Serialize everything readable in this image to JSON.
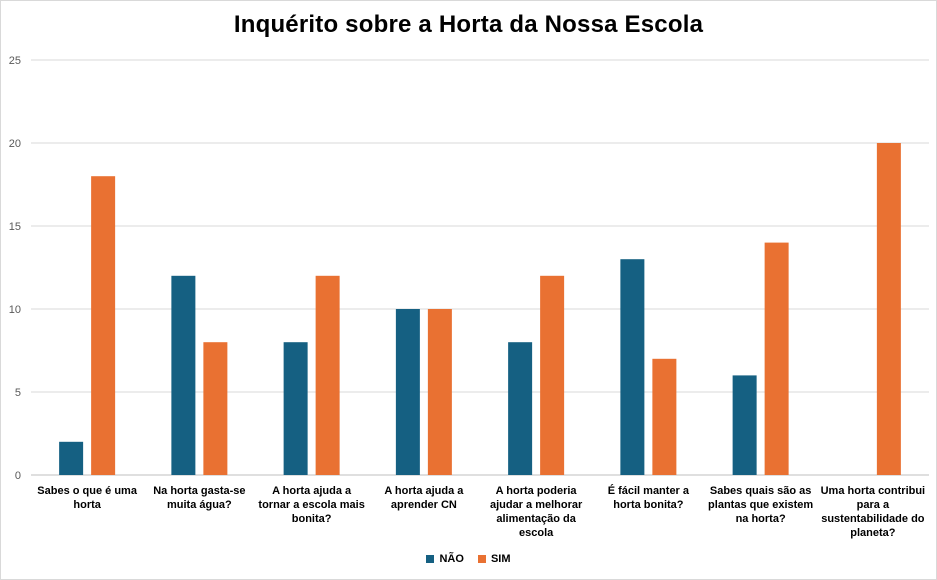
{
  "chart_data": {
    "type": "bar",
    "title": "Inquérito sobre a Horta da Nossa Escola",
    "xlabel": "",
    "ylabel": "",
    "ylim": [
      0,
      25
    ],
    "yticks": [
      0,
      5,
      10,
      15,
      20,
      25
    ],
    "grid": true,
    "legend_position": "bottom",
    "categories": [
      [
        "Sabes o que é uma",
        "horta"
      ],
      [
        "Na horta gasta-se",
        "muita água?"
      ],
      [
        "A horta ajuda a",
        "tornar a escola mais",
        "bonita?"
      ],
      [
        "A horta ajuda a",
        "aprender CN"
      ],
      [
        "A horta poderia",
        "ajudar a melhorar",
        "alimentação da",
        "escola"
      ],
      [
        "É fácil manter a",
        "horta bonita?"
      ],
      [
        "Sabes quais são as",
        "plantas que existem",
        "na horta?"
      ],
      [
        "Uma horta contribui",
        "para a",
        "sustentabilidade do",
        "planeta?"
      ]
    ],
    "series": [
      {
        "name": "NÃO",
        "color": "#156082",
        "values": [
          2,
          12,
          8,
          10,
          8,
          13,
          6,
          0
        ]
      },
      {
        "name": "SIM",
        "color": "#E97132",
        "values": [
          18,
          8,
          12,
          10,
          12,
          7,
          14,
          20
        ]
      }
    ]
  }
}
